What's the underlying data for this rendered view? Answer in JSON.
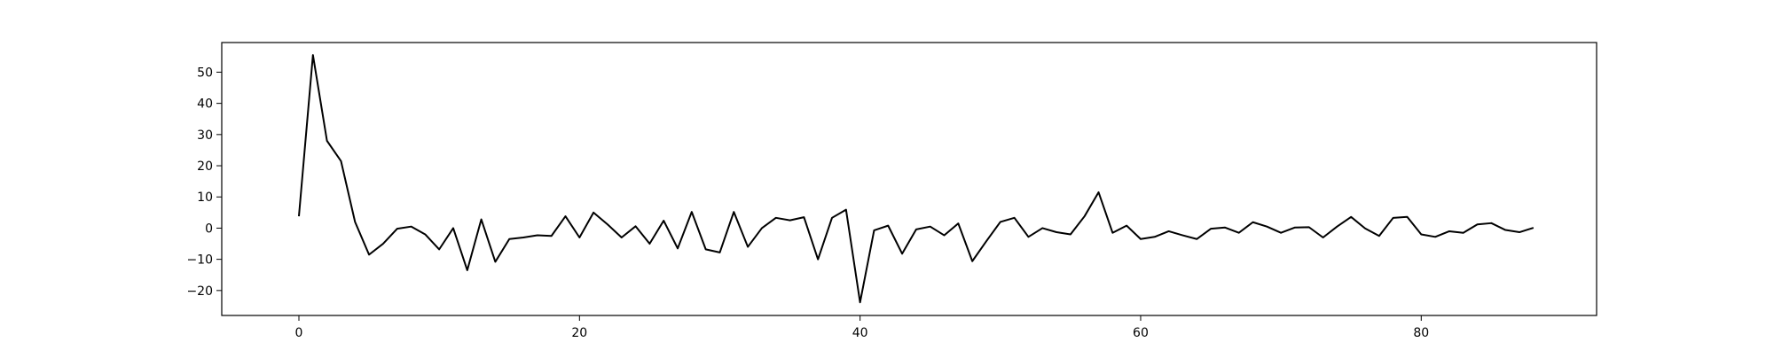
{
  "chart_data": {
    "type": "line",
    "title": "",
    "xlabel": "",
    "ylabel": "",
    "xlim": [
      -5.5,
      92.5
    ],
    "ylim": [
      -28,
      59.5
    ],
    "xticks": [
      0,
      20,
      40,
      60,
      80
    ],
    "yticks": [
      -20,
      -10,
      0,
      10,
      20,
      30,
      40,
      50
    ],
    "grid": false,
    "legend": "none",
    "colors": {
      "line": "#000000",
      "axes": "#000000",
      "background": "#ffffff"
    },
    "series": [
      {
        "x": [
          0,
          1,
          2,
          3,
          4,
          5,
          6,
          7,
          8,
          9,
          10,
          11,
          12,
          13,
          14,
          15,
          16,
          17,
          18,
          19,
          20,
          21,
          22,
          23,
          24,
          25,
          26,
          27,
          28,
          29,
          30,
          31,
          32,
          33,
          34,
          35,
          36,
          37,
          38,
          39,
          40,
          41,
          42,
          43,
          44,
          45,
          46,
          47,
          48,
          49,
          50,
          51,
          52,
          53,
          54,
          55,
          56,
          57,
          58,
          59,
          60,
          61,
          62,
          63,
          64,
          65,
          66,
          67,
          68,
          69,
          70,
          71,
          72,
          73,
          74,
          75,
          76,
          77,
          78,
          79,
          80,
          81,
          82,
          83,
          84,
          85,
          86,
          87,
          88
        ],
        "values": [
          3.8,
          55.5,
          28,
          21.5,
          2,
          -8.5,
          -5,
          -0.2,
          0.5,
          -2,
          -6.8,
          0,
          -13.5,
          2.8,
          -10.8,
          -3.5,
          -3,
          -2.3,
          -2.5,
          3.8,
          -3,
          5,
          1.2,
          -3,
          0.6,
          -5,
          2.4,
          -6.5,
          5.2,
          -6.8,
          -7.8,
          5.2,
          -6,
          0,
          3.3,
          2.5,
          3.5,
          -10,
          3.3,
          5.9,
          -23.8,
          -0.7,
          0.8,
          -8.2,
          -0.4,
          0.5,
          -2.3,
          1.5,
          -10.6,
          -4.2,
          2,
          3.3,
          -2.8,
          0,
          -1.3,
          -2,
          3.8,
          11.5,
          -1.5,
          0.8,
          -3.5,
          -2.8,
          -1,
          -2.3,
          -3.5,
          -0.2,
          0.2,
          -1.5,
          1.9,
          0.5,
          -1.5,
          0.2,
          0.3,
          -3,
          0.5,
          3.6,
          -0.1,
          -2.5,
          3.3,
          3.6,
          -2,
          -2.8,
          -1,
          -1.5,
          1.2,
          1.6,
          -0.6,
          -1.3,
          0.1
        ]
      }
    ]
  }
}
